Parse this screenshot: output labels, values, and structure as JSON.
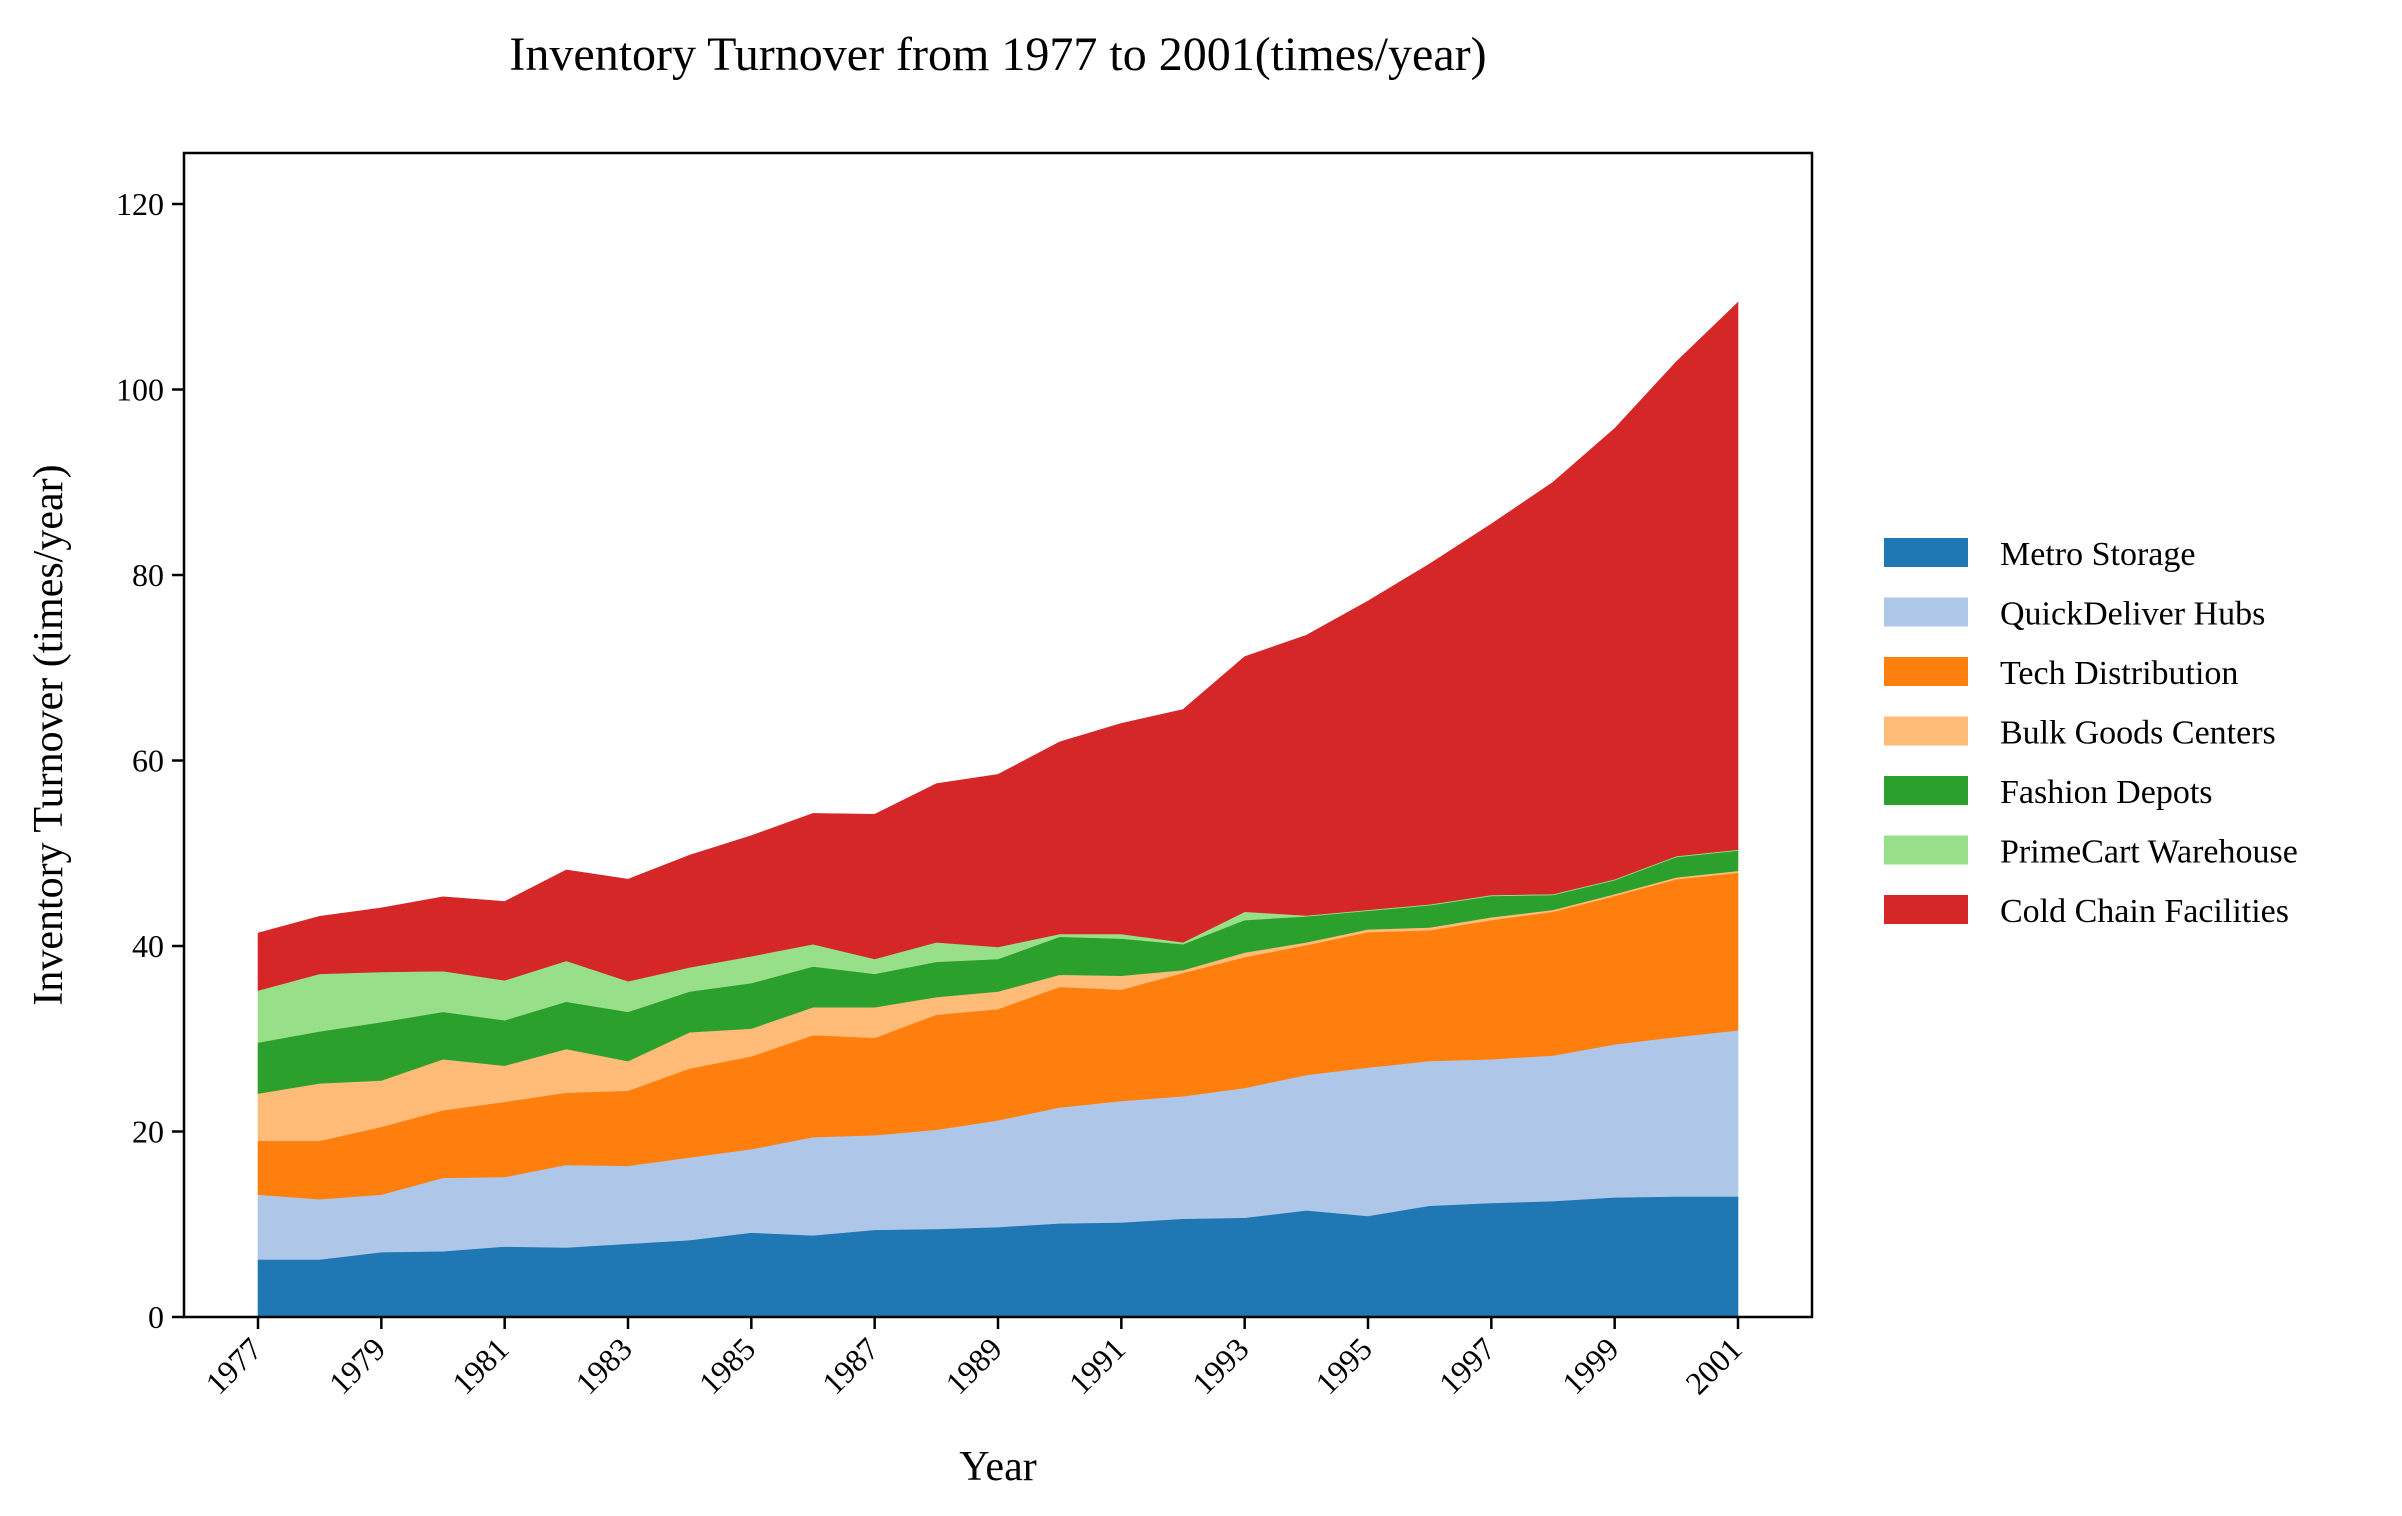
{
  "chart_data": {
    "type": "area",
    "stacked": true,
    "title": "Inventory Turnover from 1977 to 2001(times/year)",
    "xlabel": "Year",
    "ylabel": "Inventory Turnover (times/year)",
    "x": [
      1977,
      1978,
      1979,
      1980,
      1981,
      1982,
      1983,
      1984,
      1985,
      1986,
      1987,
      1988,
      1989,
      1990,
      1991,
      1992,
      1993,
      1994,
      1995,
      1996,
      1997,
      1998,
      1999,
      2000,
      2001
    ],
    "xticks": [
      "1977",
      "1979",
      "1981",
      "1983",
      "1985",
      "1987",
      "1989",
      "1991",
      "1993",
      "1995",
      "1997",
      "1999",
      "2001"
    ],
    "yticks": [
      "0",
      "20",
      "40",
      "60",
      "80",
      "100",
      "120"
    ],
    "xlim": [
      1975.8,
      2002.2
    ],
    "ylim": [
      0,
      125.5
    ],
    "legend_position": "outside-right",
    "series": [
      {
        "name": "Metro Storage",
        "color": "#1f77b4",
        "values": [
          6.2,
          6.2,
          7.0,
          7.1,
          7.6,
          7.5,
          7.9,
          8.3,
          9.1,
          8.8,
          9.4,
          9.5,
          9.7,
          10.1,
          10.2,
          10.6,
          10.7,
          11.5,
          10.9,
          12.0,
          12.3,
          12.5,
          12.9,
          13.0,
          13.0
        ]
      },
      {
        "name": "QuickDeliver Hubs",
        "color": "#aec7e8",
        "values": [
          7.0,
          6.5,
          6.2,
          7.9,
          7.5,
          8.9,
          8.4,
          8.9,
          9.0,
          10.6,
          10.2,
          10.7,
          11.5,
          12.5,
          13.1,
          13.2,
          14.0,
          14.6,
          16.0,
          15.6,
          15.5,
          15.7,
          16.5,
          17.2,
          17.9
        ]
      },
      {
        "name": "Tech Distribution",
        "color": "#ff7f0e",
        "values": [
          5.8,
          6.3,
          7.3,
          7.3,
          8.1,
          7.8,
          8.1,
          9.6,
          10.0,
          11.0,
          10.5,
          12.4,
          12.0,
          13.0,
          12.0,
          13.3,
          14.1,
          14.0,
          14.6,
          14.1,
          15.0,
          15.5,
          16.0,
          17.0,
          17.0
        ]
      },
      {
        "name": "Bulk Goods Centers",
        "color": "#ffbb78",
        "values": [
          5.1,
          6.2,
          5.0,
          5.5,
          3.9,
          4.7,
          3.2,
          3.9,
          3.0,
          3.0,
          3.3,
          1.9,
          1.9,
          1.3,
          1.5,
          0.3,
          0.5,
          0.3,
          0.3,
          0.3,
          0.3,
          0.2,
          0.2,
          0.2,
          0.2
        ]
      },
      {
        "name": "Fashion Depots",
        "color": "#2ca02c",
        "values": [
          5.5,
          5.6,
          6.3,
          5.1,
          4.9,
          5.1,
          5.3,
          4.4,
          4.9,
          4.4,
          3.6,
          3.8,
          3.5,
          4.1,
          4.0,
          2.8,
          3.5,
          2.8,
          2.0,
          2.4,
          2.3,
          1.6,
          1.5,
          2.2,
          2.2
        ]
      },
      {
        "name": "PrimeCart Warehouse",
        "color": "#98df8a",
        "values": [
          5.6,
          6.2,
          5.4,
          4.4,
          4.3,
          4.4,
          3.3,
          2.6,
          2.9,
          2.4,
          1.6,
          2.1,
          1.3,
          0.3,
          0.5,
          0.2,
          0.9,
          0.1,
          0.1,
          0.1,
          0.1,
          0.1,
          0.1,
          0.1,
          0.1
        ]
      },
      {
        "name": "Cold Chain Facilities",
        "color": "#d62728",
        "values": [
          6.2,
          6.2,
          6.9,
          8.0,
          8.5,
          9.8,
          11.0,
          12.1,
          13.0,
          14.1,
          15.6,
          17.1,
          18.6,
          20.7,
          22.7,
          25.1,
          27.5,
          30.2,
          33.3,
          36.7,
          40.0,
          44.4,
          48.6,
          53.3,
          59.0
        ]
      }
    ]
  }
}
